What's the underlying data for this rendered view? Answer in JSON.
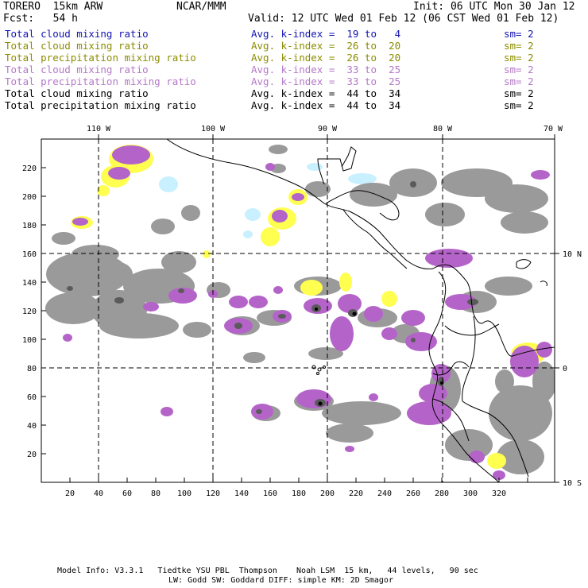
{
  "header": {
    "model": "TORERO  15km ARW",
    "org": "NCAR/MMM",
    "init": "Init: 06 UTC Mon 30 Jan 12",
    "fcst": "Fcst:   54 h",
    "valid": "Valid: 12 UTC Wed 01 Feb 12 (06 CST Wed 01 Feb 12)"
  },
  "legend": [
    {
      "field": "Total cloud mixing ratio",
      "kindex": "Avg. k-index =  19 to   4",
      "sm": "sm= 2",
      "color": "#1414b4"
    },
    {
      "field": "Total cloud mixing ratio",
      "kindex": "Avg. k-index =  26 to  20",
      "sm": "sm= 2",
      "color": "#8c8c00"
    },
    {
      "field": "Total precipitation mixing ratio",
      "kindex": "Avg. k-index =  26 to  20",
      "sm": "sm= 2",
      "color": "#8c8c00"
    },
    {
      "field": "Total cloud mixing ratio",
      "kindex": "Avg. k-index =  33 to  25",
      "sm": "sm= 2",
      "color": "#b478c8"
    },
    {
      "field": "Total precipitation mixing ratio",
      "kindex": "Avg. k-index =  33 to  25",
      "sm": "sm= 2",
      "color": "#b478c8"
    },
    {
      "field": "Total cloud mixing ratio",
      "kindex": "Avg. k-index =  44 to  34",
      "sm": "sm= 2",
      "color": "#000000"
    },
    {
      "field": "Total precipitation mixing ratio",
      "kindex": "Avg. k-index =  44 to  34",
      "sm": "sm= 2",
      "color": "#000000"
    }
  ],
  "map": {
    "x_ticks": [
      "20",
      "40",
      "60",
      "80",
      "100",
      "120",
      "140",
      "160",
      "180",
      "200",
      "220",
      "240",
      "260",
      "280",
      "300",
      "320"
    ],
    "y_ticks": [
      "20",
      "40",
      "60",
      "80",
      "100",
      "120",
      "140",
      "160",
      "180",
      "200",
      "220"
    ],
    "lon_labels": [
      "110 W",
      "100 W",
      "90 W",
      "80 W",
      "70 W"
    ],
    "lat_labels": [
      "10 N",
      "0",
      "10 S"
    ],
    "colors": {
      "cloud": "#9a9a9a",
      "precip": "#b464c8",
      "yellow": "#ffff50",
      "lightblue": "#c8f0ff"
    }
  },
  "footer": {
    "line1": "Model Info: V3.3.1   Tiedtke YSU PBL  Thompson    Noah LSM  15 km,   44 levels,   90 sec",
    "line2": "LW: Godd SW: Goddard DIFF: simple KM: 2D Smagor"
  }
}
